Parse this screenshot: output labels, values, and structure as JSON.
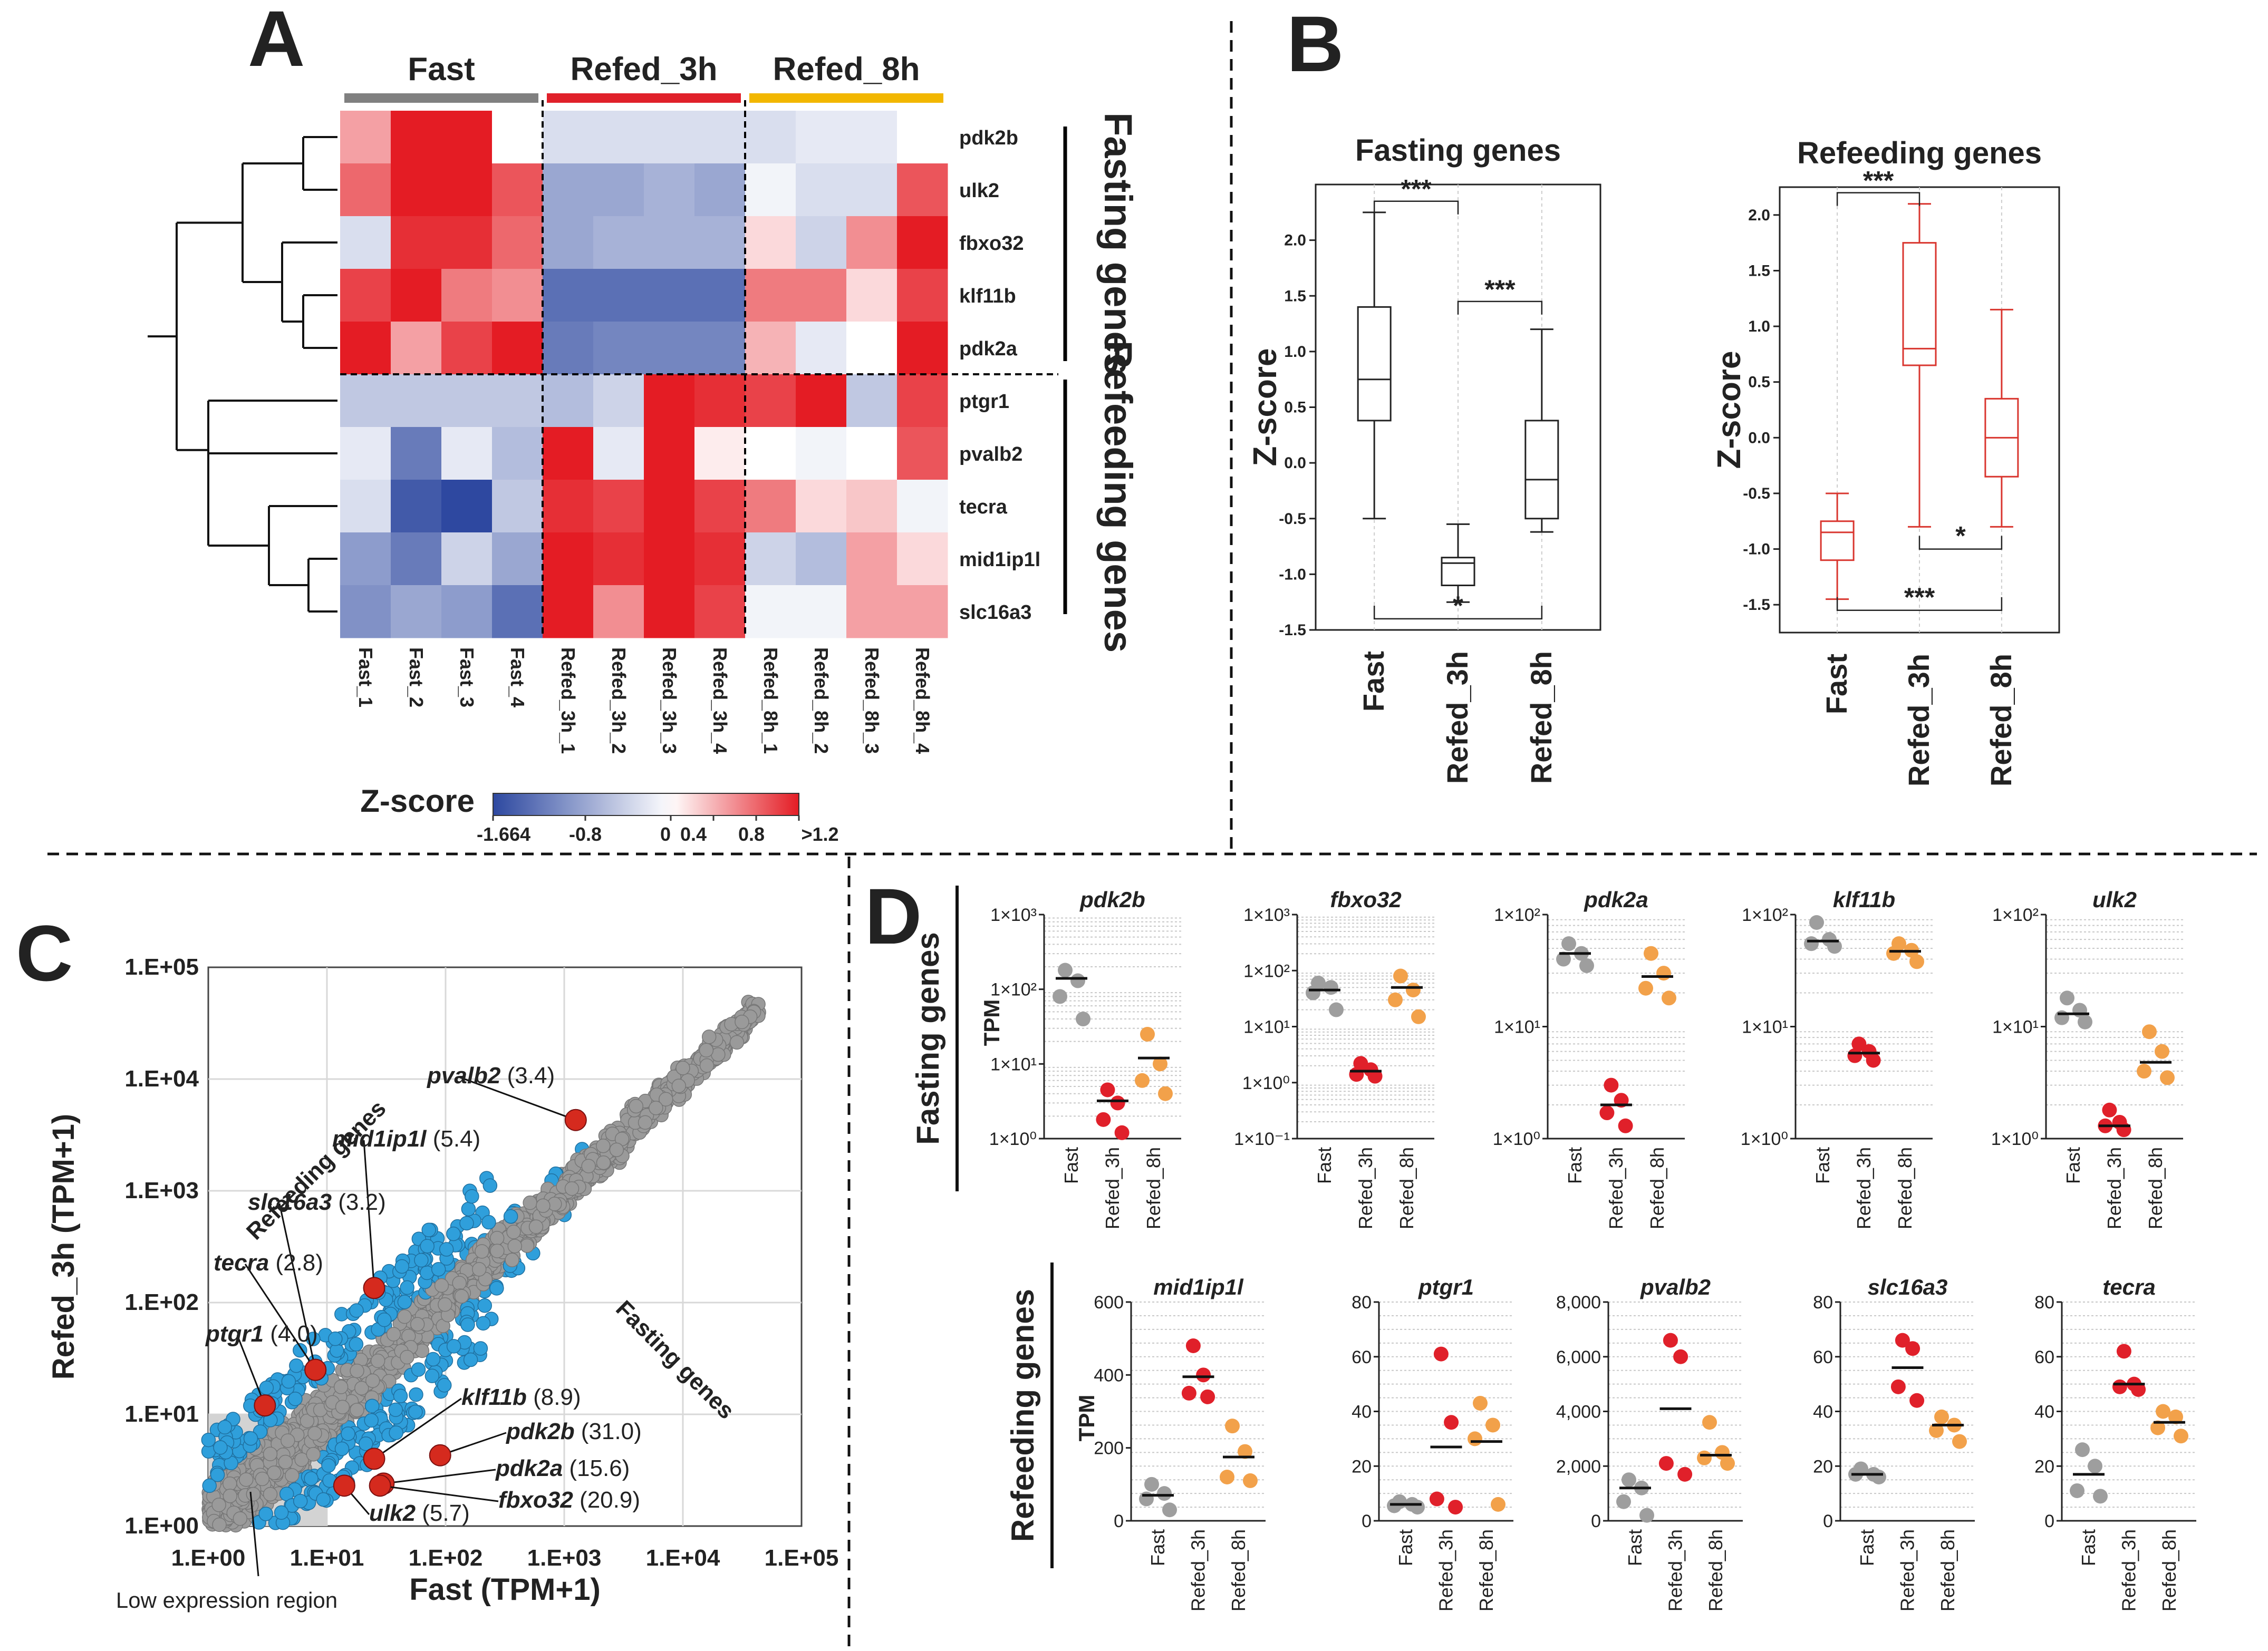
{
  "panels": {
    "A": "A",
    "B": "B",
    "C": "C",
    "D": "D"
  },
  "chart_data": [
    {
      "id": "heatmap",
      "type": "heatmap",
      "groups": [
        "Fast",
        "Refed_3h",
        "Refed_8h"
      ],
      "group_colors": [
        "#808080",
        "#e0202a",
        "#f2b700"
      ],
      "columns": [
        "Fast_1",
        "Fast_2",
        "Fast_3",
        "Fast_4",
        "Refed_3h_1",
        "Refed_3h_2",
        "Refed_3h_3",
        "Refed_3h_4",
        "Refed_8h_1",
        "Refed_8h_2",
        "Refed_8h_3",
        "Refed_8h_4"
      ],
      "rows": [
        "pdk2b",
        "ulk2",
        "fbxo32",
        "klf11b",
        "pdk2a",
        "ptgr1",
        "pvalb2",
        "tecra",
        "mid1ip1l",
        "slc16a3"
      ],
      "row_groups": [
        "Fasting genes",
        "Refeeding genes"
      ],
      "values": [
        [
          0.5,
          1.2,
          1.2,
          0.0,
          -0.3,
          -0.3,
          -0.3,
          -0.3,
          -0.3,
          -0.2,
          -0.2,
          0.0
        ],
        [
          0.8,
          1.2,
          1.2,
          0.9,
          -0.8,
          -0.8,
          -0.7,
          -0.8,
          -0.1,
          -0.3,
          -0.3,
          0.9
        ],
        [
          -0.3,
          1.1,
          1.1,
          0.8,
          -0.8,
          -0.7,
          -0.7,
          -0.7,
          0.2,
          -0.4,
          0.6,
          1.2
        ],
        [
          1.0,
          1.2,
          0.7,
          0.6,
          -1.3,
          -1.3,
          -1.3,
          -1.3,
          0.7,
          0.7,
          0.2,
          1.0
        ],
        [
          1.2,
          0.5,
          1.0,
          1.2,
          -1.2,
          -1.1,
          -1.1,
          -1.1,
          0.4,
          -0.2,
          0.0,
          1.2
        ],
        [
          -0.5,
          -0.5,
          -0.5,
          -0.5,
          -0.6,
          -0.4,
          1.2,
          1.1,
          1.0,
          1.2,
          -0.5,
          1.0
        ],
        [
          -0.2,
          -1.2,
          -0.2,
          -0.6,
          1.2,
          -0.2,
          1.2,
          0.1,
          0.0,
          -0.1,
          0.0,
          0.9
        ],
        [
          -0.3,
          -1.5,
          -1.66,
          -0.5,
          1.1,
          1.0,
          1.2,
          1.0,
          0.7,
          0.2,
          0.3,
          -0.1
        ],
        [
          -0.9,
          -1.2,
          -0.4,
          -0.8,
          1.2,
          1.1,
          1.2,
          1.1,
          -0.4,
          -0.6,
          0.5,
          0.2
        ],
        [
          -1.0,
          -0.8,
          -0.9,
          -1.3,
          1.2,
          0.6,
          1.2,
          1.0,
          -0.1,
          -0.1,
          0.5,
          0.5
        ]
      ],
      "colorbar": {
        "title": "Z-score",
        "tick_labels": [
          "-1.664",
          "-0.8",
          "0",
          "0.4",
          "0.8",
          ">1.2"
        ],
        "tick_values": [
          -1.664,
          -0.8,
          0,
          0.4,
          0.8,
          1.2
        ],
        "range": [
          -1.664,
          1.2
        ]
      }
    },
    {
      "id": "box_fasting",
      "type": "box",
      "title": "Fasting genes",
      "ylabel": "Z-score",
      "categories": [
        "Fast",
        "Refed_3h",
        "Refed_8h"
      ],
      "ylim": [
        -1.5,
        2.5
      ],
      "yticks": [
        -1.5,
        -1.0,
        -0.5,
        0.0,
        0.5,
        1.0,
        1.5,
        2.0
      ],
      "ytick_labels": [
        "-1.5",
        "-1.0",
        "-0.5",
        "0.0",
        "0.5",
        "1.0",
        "1.5",
        "2.0"
      ],
      "boxes": [
        {
          "min": -0.5,
          "q1": 0.38,
          "median": 0.75,
          "q3": 1.4,
          "max": 2.25
        },
        {
          "min": -1.25,
          "q1": -1.1,
          "median": -0.9,
          "q3": -0.85,
          "max": -0.55
        },
        {
          "min": -0.62,
          "q1": -0.5,
          "median": -0.15,
          "q3": 0.38,
          "max": 1.2
        }
      ],
      "color": "#222222",
      "annotations": [
        {
          "text": "***",
          "pair": [
            "Fast",
            "Refed_3h"
          ],
          "y": 2.35
        },
        {
          "text": "***",
          "pair": [
            "Refed_3h",
            "Refed_8h"
          ],
          "y": 1.45
        },
        {
          "text": "*",
          "pair": [
            "Fast",
            "Refed_8h"
          ],
          "y": -1.4
        }
      ]
    },
    {
      "id": "box_refeeding",
      "type": "box",
      "title": "Refeeding genes",
      "ylabel": "Z-score",
      "categories": [
        "Fast",
        "Refed_3h",
        "Refed_8h"
      ],
      "ylim": [
        -1.75,
        2.25
      ],
      "yticks": [
        -1.5,
        -1.0,
        -0.5,
        0.0,
        0.5,
        1.0,
        1.5,
        2.0
      ],
      "ytick_labels": [
        "-1.5",
        "-1.0",
        "-0.5",
        "0.0",
        "0.5",
        "1.0",
        "1.5",
        "2.0"
      ],
      "boxes": [
        {
          "min": -1.45,
          "q1": -1.1,
          "median": -0.85,
          "q3": -0.75,
          "max": -0.5
        },
        {
          "min": -0.8,
          "q1": 0.65,
          "median": 0.8,
          "q3": 1.75,
          "max": 2.1
        },
        {
          "min": -0.8,
          "q1": -0.35,
          "median": 0.0,
          "q3": 0.35,
          "max": 1.15
        }
      ],
      "color": "#d9362f",
      "annotations": [
        {
          "text": "***",
          "pair": [
            "Fast",
            "Refed_3h"
          ],
          "y": 2.2
        },
        {
          "text": "*",
          "pair": [
            "Refed_3h",
            "Refed_8h"
          ],
          "y": -1.0
        },
        {
          "text": "***",
          "pair": [
            "Fast",
            "Refed_8h"
          ],
          "y": -1.55
        }
      ]
    },
    {
      "id": "scatter_tpm",
      "type": "scatter",
      "xlabel": "Fast (TPM+1)",
      "ylabel": "Refed_3h (TPM+1)",
      "scale": "log",
      "xlim": [
        1,
        100000
      ],
      "ylim": [
        1,
        100000
      ],
      "xtick_labels": [
        "1.E+00",
        "1.E+01",
        "1.E+02",
        "1.E+03",
        "1.E+04",
        "1.E+05"
      ],
      "ytick_labels": [
        "1.E+00",
        "1.E+01",
        "1.E+02",
        "1.E+03",
        "1.E+04",
        "1.E+05"
      ],
      "region_labels": [
        "Refeeding genes",
        "Fasting genes",
        "Low expression region"
      ],
      "highlighted": [
        {
          "gene": "pvalb2",
          "fc": "(3.4)",
          "x": 1250,
          "y": 4300
        },
        {
          "gene": "mid1ip1l",
          "fc": "(5.4)",
          "x": 25,
          "y": 135
        },
        {
          "gene": "slc16a3",
          "fc": "(3.2)",
          "x": 8,
          "y": 25
        },
        {
          "gene": "tecra",
          "fc": "(2.8)",
          "x": 8,
          "y": 25
        },
        {
          "gene": "ptgr1",
          "fc": "(4.0)",
          "x": 3,
          "y": 12
        },
        {
          "gene": "klf11b",
          "fc": "(8.9)",
          "x": 25,
          "y": 4
        },
        {
          "gene": "pdk2b",
          "fc": "(31.0)",
          "x": 90,
          "y": 4.3
        },
        {
          "gene": "pdk2a",
          "fc": "(15.6)",
          "x": 30,
          "y": 2.4
        },
        {
          "gene": "fbxo32",
          "fc": "(20.9)",
          "x": 28,
          "y": 2.3
        },
        {
          "gene": "ulk2",
          "fc": "(5.7)",
          "x": 14,
          "y": 2.3
        }
      ]
    },
    {
      "id": "dotplots_fasting",
      "type": "scatter",
      "group_label": "Fasting genes",
      "ylabel": "TPM",
      "categories": [
        "Fast",
        "Refed_3h",
        "Refed_8h"
      ],
      "category_colors": [
        "#9e9e9e",
        "#e0202a",
        "#f2a14a"
      ],
      "scale": "log",
      "plots": [
        {
          "gene": "pdk2b",
          "ylim_exp": [
            0,
            3
          ],
          "ytick_labels": [
            "1×10⁰",
            "1×10¹",
            "1×10²",
            "1×10³"
          ],
          "points": [
            [
              180,
              130,
              80,
              40
            ],
            [
              4.5,
              3,
              1.8,
              1.2
            ],
            [
              25,
              10,
              6,
              4
            ]
          ],
          "means": [
            140,
            3.2,
            12
          ]
        },
        {
          "gene": "fbxo32",
          "ylim_exp": [
            -1,
            3
          ],
          "ytick_labels": [
            "1×10⁻¹",
            "1×10⁰",
            "1×10¹",
            "1×10²",
            "1×10³"
          ],
          "points": [
            [
              60,
              50,
              40,
              20
            ],
            [
              2.2,
              1.7,
              1.4,
              1.3
            ],
            [
              80,
              45,
              30,
              15
            ]
          ],
          "means": [
            45,
            1.6,
            50
          ]
        },
        {
          "gene": "pdk2a",
          "ylim_exp": [
            0,
            2
          ],
          "ytick_labels": [
            "1×10⁰",
            "1×10¹",
            "1×10²"
          ],
          "points": [
            [
              55,
              45,
              40,
              35
            ],
            [
              3,
              2.2,
              1.7,
              1.3
            ],
            [
              45,
              30,
              22,
              18
            ]
          ],
          "means": [
            45,
            2,
            28
          ]
        },
        {
          "gene": "klf11b",
          "ylim_exp": [
            0,
            2
          ],
          "ytick_labels": [
            "1×10⁰",
            "1×10¹",
            "1×10²"
          ],
          "points": [
            [
              85,
              60,
              55,
              52
            ],
            [
              7,
              6,
              5.5,
              5
            ],
            [
              55,
              48,
              45,
              38
            ]
          ],
          "means": [
            58,
            5.8,
            47
          ]
        },
        {
          "gene": "ulk2",
          "ylim_exp": [
            0,
            2
          ],
          "ytick_labels": [
            "1×10⁰",
            "1×10¹",
            "1×10²"
          ],
          "points": [
            [
              18,
              14,
              12,
              11
            ],
            [
              1.8,
              1.4,
              1.3,
              1.2
            ],
            [
              9,
              6,
              4,
              3.5
            ]
          ],
          "means": [
            13,
            1.3,
            4.8
          ]
        }
      ]
    },
    {
      "id": "dotplots_refeeding",
      "type": "scatter",
      "group_label": "Refeeding genes",
      "ylabel": "TPM",
      "categories": [
        "Fast",
        "Refed_3h",
        "Refed_8h"
      ],
      "category_colors": [
        "#9e9e9e",
        "#e0202a",
        "#f2a14a"
      ],
      "scale": "linear",
      "plots": [
        {
          "gene": "mid1ip1l",
          "ylim": [
            0,
            600
          ],
          "yticks": [
            0,
            200,
            400,
            600
          ],
          "ytick_labels": [
            "0",
            "200",
            "400",
            "600"
          ],
          "points": [
            [
              100,
              75,
              60,
              30
            ],
            [
              480,
              400,
              350,
              340
            ],
            [
              260,
              190,
              120,
              110
            ]
          ],
          "means": [
            70,
            395,
            175
          ]
        },
        {
          "gene": "ptgr1",
          "ylim": [
            0,
            80
          ],
          "yticks": [
            0,
            20,
            40,
            60,
            80
          ],
          "ytick_labels": [
            "0",
            "20",
            "40",
            "60",
            "80"
          ],
          "points": [
            [
              7,
              6,
              5.5,
              5
            ],
            [
              61,
              36,
              8,
              5
            ],
            [
              43,
              35,
              30,
              6
            ]
          ],
          "means": [
            6,
            27,
            29
          ]
        },
        {
          "gene": "pvalb2",
          "ylim": [
            0,
            8000
          ],
          "yticks": [
            0,
            2000,
            4000,
            6000,
            8000
          ],
          "ytick_labels": [
            "0",
            "2,000",
            "4,000",
            "6,000",
            "8,000"
          ],
          "points": [
            [
              1500,
              1200,
              700,
              200
            ],
            [
              6600,
              6000,
              2100,
              1700
            ],
            [
              3600,
              2500,
              2300,
              2100
            ]
          ],
          "means": [
            1200,
            4100,
            2400
          ]
        },
        {
          "gene": "slc16a3",
          "ylim": [
            0,
            80
          ],
          "yticks": [
            0,
            20,
            40,
            60,
            80
          ],
          "ytick_labels": [
            "0",
            "20",
            "40",
            "60",
            "80"
          ],
          "points": [
            [
              19,
              17,
              17,
              16
            ],
            [
              66,
              63,
              49,
              44
            ],
            [
              38,
              35,
              33,
              29
            ]
          ],
          "means": [
            17,
            56,
            35
          ]
        },
        {
          "gene": "tecra",
          "ylim": [
            0,
            80
          ],
          "yticks": [
            0,
            20,
            40,
            60,
            80
          ],
          "ytick_labels": [
            "0",
            "20",
            "40",
            "60",
            "80"
          ],
          "points": [
            [
              26,
              20,
              11,
              9
            ],
            [
              62,
              50,
              49,
              48
            ],
            [
              40,
              38,
              34,
              31
            ]
          ],
          "means": [
            17,
            50,
            36
          ]
        }
      ]
    }
  ]
}
